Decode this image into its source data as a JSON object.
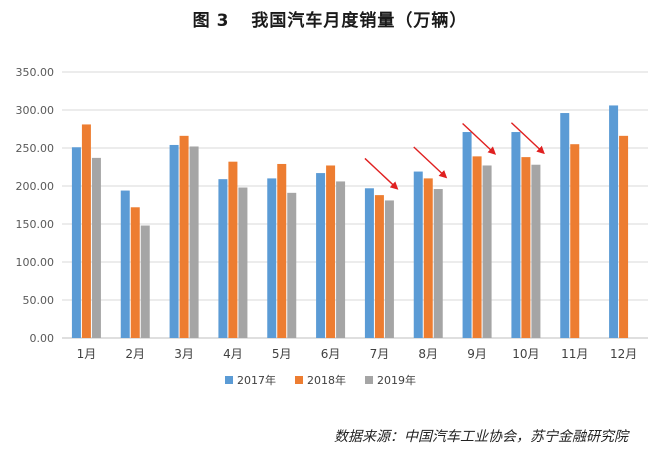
{
  "figure": {
    "label": "图",
    "number": "3",
    "title": "我国汽车月度销量（万辆）"
  },
  "source": "数据来源：中国汽车工业协会，苏宁金融研究院",
  "chart_data": {
    "type": "bar",
    "title": "我国汽车月度销量（万辆）",
    "xlabel": "",
    "ylabel": "",
    "categories": [
      "1月",
      "2月",
      "3月",
      "4月",
      "5月",
      "6月",
      "7月",
      "8月",
      "9月",
      "10月",
      "11月",
      "12月"
    ],
    "yticks": [
      "0.00",
      "50.00",
      "100.00",
      "150.00",
      "200.00",
      "250.00",
      "300.00",
      "350.00"
    ],
    "ylim": [
      0,
      350
    ],
    "grid": true,
    "legend": "bottom",
    "series": [
      {
        "name": "2017年",
        "color": "#5b9bd5",
        "values": [
          251,
          194,
          254,
          209,
          210,
          217,
          197,
          219,
          271,
          271,
          296,
          306
        ]
      },
      {
        "name": "2018年",
        "color": "#ed7d31",
        "values": [
          281,
          172,
          266,
          232,
          229,
          227,
          188,
          210,
          239,
          238,
          255,
          266
        ]
      },
      {
        "name": "2019年",
        "color": "#a5a5a5",
        "values": [
          237,
          148,
          252,
          198,
          191,
          206,
          181,
          196,
          227,
          228,
          null,
          null
        ]
      }
    ],
    "annotations": [
      {
        "type": "arrow",
        "color": "#e02020",
        "category": "7月",
        "direction": "down-right"
      },
      {
        "type": "arrow",
        "color": "#e02020",
        "category": "8月",
        "direction": "down-right"
      },
      {
        "type": "arrow",
        "color": "#e02020",
        "category": "9月",
        "direction": "down-right"
      },
      {
        "type": "arrow",
        "color": "#e02020",
        "category": "10月",
        "direction": "down-right"
      }
    ]
  }
}
